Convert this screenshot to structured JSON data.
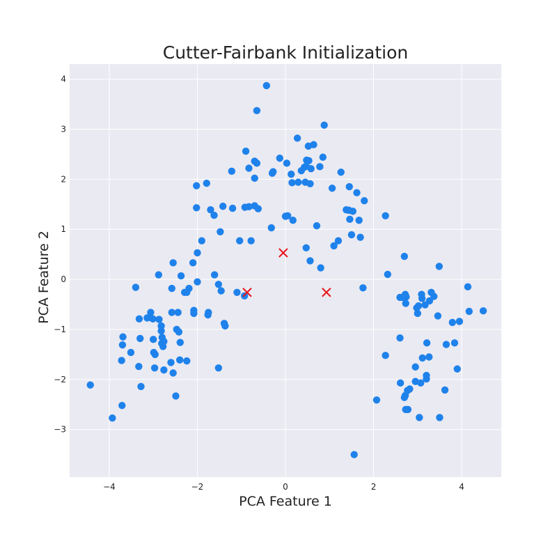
{
  "chart_data": {
    "type": "scatter",
    "title": "Cutter-Fairbank Initialization",
    "xlabel": "PCA Feature 1",
    "ylabel": "PCA Feature 2",
    "xlim": [
      -4.9,
      4.9
    ],
    "ylim": [
      -3.95,
      4.3
    ],
    "xticks": [
      -4,
      -2,
      0,
      2,
      4
    ],
    "yticks": [
      -3,
      -2,
      -1,
      0,
      1,
      2,
      3,
      4
    ],
    "xtick_labels": [
      "−4",
      "−2",
      "0",
      "2",
      "4"
    ],
    "ytick_labels": [
      "−3",
      "−2",
      "−1",
      "0",
      "1",
      "2",
      "3",
      "4"
    ],
    "grid": true,
    "background_color": "#eaeaf2",
    "point_color": "#1f82eb",
    "centroid_color": "#e8141a",
    "series": [
      {
        "marker": "circle",
        "points": [
          [
            -0.43,
            3.87
          ],
          [
            -0.65,
            3.37
          ],
          [
            0.88,
            3.08
          ],
          [
            0.27,
            2.82
          ],
          [
            -0.9,
            2.56
          ],
          [
            0.52,
            2.66
          ],
          [
            0.64,
            2.69
          ],
          [
            0.85,
            2.44
          ],
          [
            -0.13,
            2.42
          ],
          [
            -0.7,
            2.36
          ],
          [
            -0.65,
            2.32
          ],
          [
            0.03,
            2.32
          ],
          [
            0.48,
            2.38
          ],
          [
            0.53,
            2.37
          ],
          [
            -1.22,
            2.16
          ],
          [
            -0.83,
            2.22
          ],
          [
            -0.3,
            2.12
          ],
          [
            -0.28,
            2.15
          ],
          [
            0.13,
            2.1
          ],
          [
            0.36,
            2.17
          ],
          [
            0.43,
            2.24
          ],
          [
            0.47,
            2.26
          ],
          [
            0.58,
            2.21
          ],
          [
            0.78,
            2.25
          ],
          [
            1.26,
            2.14
          ],
          [
            -0.7,
            2.02
          ],
          [
            0.15,
            1.93
          ],
          [
            0.29,
            1.94
          ],
          [
            0.45,
            1.94
          ],
          [
            0.56,
            1.91
          ],
          [
            1.06,
            1.82
          ],
          [
            1.45,
            1.85
          ],
          [
            1.62,
            1.73
          ],
          [
            -2.02,
            1.87
          ],
          [
            -1.79,
            1.92
          ],
          [
            1.79,
            1.57
          ],
          [
            -2.02,
            1.43
          ],
          [
            -1.7,
            1.39
          ],
          [
            -1.42,
            1.46
          ],
          [
            -1.2,
            1.42
          ],
          [
            -0.92,
            1.44
          ],
          [
            -0.83,
            1.45
          ],
          [
            -0.7,
            1.47
          ],
          [
            -0.62,
            1.41
          ],
          [
            1.38,
            1.39
          ],
          [
            1.44,
            1.38
          ],
          [
            1.53,
            1.36
          ],
          [
            2.27,
            1.27
          ],
          [
            -1.62,
            1.28
          ],
          [
            0.0,
            1.26
          ],
          [
            0.05,
            1.27
          ],
          [
            0.17,
            1.18
          ],
          [
            1.46,
            1.2
          ],
          [
            1.67,
            1.18
          ],
          [
            -0.32,
            1.03
          ],
          [
            0.71,
            1.07
          ],
          [
            -1.48,
            0.95
          ],
          [
            -1.04,
            0.77
          ],
          [
            -0.78,
            0.77
          ],
          [
            -1.9,
            0.77
          ],
          [
            1.2,
            0.77
          ],
          [
            1.1,
            0.67
          ],
          [
            1.5,
            0.89
          ],
          [
            1.7,
            0.84
          ],
          [
            -2.0,
            0.53
          ],
          [
            0.47,
            0.63
          ],
          [
            2.7,
            0.46
          ],
          [
            0.56,
            0.37
          ],
          [
            0.8,
            0.23
          ],
          [
            -2.55,
            0.33
          ],
          [
            -2.1,
            0.33
          ],
          [
            3.49,
            0.26
          ],
          [
            -2.37,
            0.07
          ],
          [
            -2.88,
            0.09
          ],
          [
            -1.61,
            0.09
          ],
          [
            2.32,
            0.1
          ],
          [
            -2.0,
            -0.05
          ],
          [
            -1.52,
            -0.1
          ],
          [
            4.14,
            -0.15
          ],
          [
            -3.4,
            -0.16
          ],
          [
            -2.58,
            -0.18
          ],
          [
            -2.19,
            -0.18
          ],
          [
            -1.46,
            -0.23
          ],
          [
            -1.1,
            -0.26
          ],
          [
            -2.24,
            -0.26
          ],
          [
            -2.29,
            -0.26
          ],
          [
            1.76,
            -0.17
          ],
          [
            2.6,
            -0.36
          ],
          [
            2.7,
            -0.34
          ],
          [
            2.72,
            -0.3
          ],
          [
            2.74,
            -0.35
          ],
          [
            2.73,
            -0.48
          ],
          [
            2.66,
            -0.36
          ],
          [
            3.09,
            -0.3
          ],
          [
            3.31,
            -0.26
          ],
          [
            3.1,
            -0.38
          ],
          [
            3.37,
            -0.34
          ],
          [
            3.17,
            -0.51
          ],
          [
            3.27,
            -0.43
          ],
          [
            3.02,
            -0.53
          ],
          [
            2.98,
            -0.57
          ],
          [
            3.0,
            -0.68
          ],
          [
            -0.93,
            -0.33
          ],
          [
            -2.58,
            -0.66
          ],
          [
            -2.44,
            -0.66
          ],
          [
            -2.08,
            -0.62
          ],
          [
            -1.75,
            -0.66
          ],
          [
            -2.08,
            -0.68
          ],
          [
            -1.76,
            -0.71
          ],
          [
            -3.06,
            -0.66
          ],
          [
            -3.09,
            -0.76
          ],
          [
            -3.01,
            -0.79
          ],
          [
            -3.14,
            -0.77
          ],
          [
            -3.32,
            -0.79
          ],
          [
            -2.87,
            -0.8
          ],
          [
            3.46,
            -0.73
          ],
          [
            3.79,
            -0.86
          ],
          [
            4.17,
            -0.64
          ],
          [
            4.49,
            -0.63
          ],
          [
            3.95,
            -0.84
          ],
          [
            -1.39,
            -0.88
          ],
          [
            -1.37,
            -0.93
          ],
          [
            -2.82,
            -0.93
          ],
          [
            -2.47,
            -1.0
          ],
          [
            -2.42,
            -1.05
          ],
          [
            -2.82,
            -1.03
          ],
          [
            -2.8,
            -1.16
          ],
          [
            -3.69,
            -1.15
          ],
          [
            -3.3,
            -1.18
          ],
          [
            -3.0,
            -1.2
          ],
          [
            -2.76,
            -1.24
          ],
          [
            -2.39,
            -1.26
          ],
          [
            -2.81,
            -1.28
          ],
          [
            -2.78,
            -1.34
          ],
          [
            -3.7,
            -1.31
          ],
          [
            2.6,
            -1.17
          ],
          [
            3.84,
            -1.27
          ],
          [
            3.21,
            -1.27
          ],
          [
            3.65,
            -1.3
          ],
          [
            -3.51,
            -1.46
          ],
          [
            -2.99,
            -1.46
          ],
          [
            -2.96,
            -1.5
          ],
          [
            3.11,
            -1.57
          ],
          [
            3.26,
            -1.55
          ],
          [
            -3.72,
            -1.62
          ],
          [
            -2.4,
            -1.61
          ],
          [
            -2.24,
            -1.63
          ],
          [
            -2.6,
            -1.66
          ],
          [
            -1.52,
            -1.77
          ],
          [
            -3.33,
            -1.74
          ],
          [
            -2.97,
            -1.77
          ],
          [
            -2.76,
            -1.81
          ],
          [
            -2.55,
            -1.87
          ],
          [
            2.27,
            -1.52
          ],
          [
            2.95,
            -1.75
          ],
          [
            3.9,
            -1.79
          ],
          [
            3.2,
            -1.92
          ],
          [
            3.2,
            -1.99
          ],
          [
            2.95,
            -2.04
          ],
          [
            3.07,
            -2.07
          ],
          [
            2.61,
            -2.07
          ],
          [
            2.77,
            -2.22
          ],
          [
            2.82,
            -2.19
          ],
          [
            2.72,
            -2.32
          ],
          [
            2.7,
            -2.36
          ],
          [
            3.62,
            -2.21
          ],
          [
            -4.43,
            -2.11
          ],
          [
            -3.28,
            -2.14
          ],
          [
            -2.49,
            -2.33
          ],
          [
            2.07,
            -2.41
          ],
          [
            -3.71,
            -2.52
          ],
          [
            2.73,
            -2.6
          ],
          [
            2.78,
            -2.6
          ],
          [
            3.04,
            -2.76
          ],
          [
            3.5,
            -2.76
          ],
          [
            -3.93,
            -2.77
          ],
          [
            1.56,
            -3.5
          ]
        ]
      },
      {
        "marker": "x",
        "points": [
          [
            -0.87,
            -0.26
          ],
          [
            -0.05,
            0.53
          ],
          [
            0.93,
            -0.26
          ]
        ]
      }
    ]
  }
}
